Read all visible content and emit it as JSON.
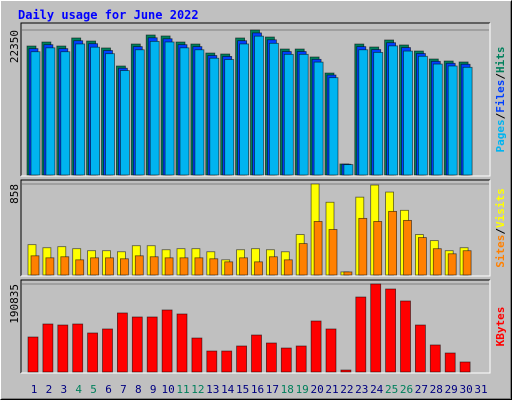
{
  "chart_data": {
    "type": "bar",
    "title": "Daily usage for June 2022",
    "categories": [
      "1",
      "2",
      "3",
      "4",
      "5",
      "6",
      "7",
      "8",
      "9",
      "10",
      "11",
      "12",
      "13",
      "14",
      "15",
      "16",
      "17",
      "18",
      "19",
      "20",
      "21",
      "22",
      "23",
      "24",
      "25",
      "26",
      "27",
      "28",
      "29",
      "30",
      "31"
    ],
    "category_colors": [
      "#000080",
      "#000080",
      "#000080",
      "#00805c",
      "#00805c",
      "#000080",
      "#000080",
      "#000080",
      "#000080",
      "#000080",
      "#00805c",
      "#00805c",
      "#000080",
      "#000080",
      "#000080",
      "#000080",
      "#000080",
      "#00805c",
      "#00805c",
      "#000080",
      "#000080",
      "#000080",
      "#000080",
      "#000080",
      "#00805c",
      "#00805c",
      "#000080",
      "#000080",
      "#000080",
      "#000080",
      "#000080"
    ],
    "legend_separator": "/",
    "panels": [
      {
        "ylim": [
          0,
          22350
        ],
        "yticks": [
          22350
        ],
        "grid": true,
        "series": [
          {
            "name": "Hits",
            "color": "#00805c",
            "values": [
              19880,
              20500,
              19880,
              21120,
              20650,
              19580,
              16800,
              20190,
              21580,
              21430,
              20500,
              20190,
              18800,
              18650,
              21120,
              22350,
              21270,
              19420,
              19420,
              18190,
              15720,
              1700,
              20190,
              19730,
              20810,
              20040,
              19110,
              17880,
              17570,
              17420,
              null
            ]
          },
          {
            "name": "Files",
            "color": "#0040ff",
            "values": [
              19480,
              20090,
              19480,
              20700,
              20240,
              19190,
              16460,
              19790,
              21150,
              21000,
              20090,
              19790,
              18420,
              18280,
              20700,
              21900,
              20840,
              19030,
              19030,
              17830,
              15410,
              1660,
              19790,
              19340,
              20390,
              19640,
              18730,
              17520,
              17220,
              17070,
              null
            ]
          },
          {
            "name": "Pages",
            "color": "#00b4f0",
            "values": [
              19000,
              19600,
              19000,
              20200,
              19700,
              18700,
              16100,
              19300,
              20600,
              20500,
              19600,
              19300,
              18000,
              17800,
              20200,
              21400,
              20300,
              18600,
              18600,
              17400,
              15000,
              1600,
              19300,
              18900,
              19900,
              19100,
              18300,
              17100,
              16800,
              16600,
              null
            ]
          }
        ]
      },
      {
        "ylim": [
          0,
          858
        ],
        "yticks": [
          858
        ],
        "grid": true,
        "series": [
          {
            "name": "Visits",
            "color": "#ffff00",
            "values": [
              286,
              257,
              267,
              248,
              229,
              229,
              219,
              276,
              276,
              238,
              248,
              248,
              219,
              143,
              238,
              248,
              238,
              219,
              381,
              858,
              686,
              29,
              734,
              848,
              782,
              610,
              381,
              324,
              229,
              257,
              null
            ]
          },
          {
            "name": "Sites",
            "color": "#ff8000",
            "values": [
              181,
              162,
              172,
              143,
              162,
              162,
              153,
              181,
              172,
              162,
              162,
              162,
              153,
              124,
              162,
              124,
              172,
              143,
              296,
              505,
              429,
              29,
              534,
              505,
              600,
              515,
              353,
              248,
              200,
              229,
              null
            ]
          }
        ]
      },
      {
        "ylim": [
          0,
          190835
        ],
        "yticks": [
          190835
        ],
        "grid": true,
        "series": [
          {
            "name": "KBytes",
            "color": "#ff0000",
            "values": [
              75900,
              104100,
              101900,
              104100,
              84600,
              93300,
              128000,
              119300,
              119300,
              134500,
              125800,
              73700,
              45500,
              45500,
              56400,
              80200,
              62900,
              52000,
              56400,
              110600,
              93300,
              4300,
              162600,
              190835,
              180000,
              154000,
              101900,
              58600,
              41200,
              21700,
              null
            ]
          }
        ]
      }
    ]
  }
}
